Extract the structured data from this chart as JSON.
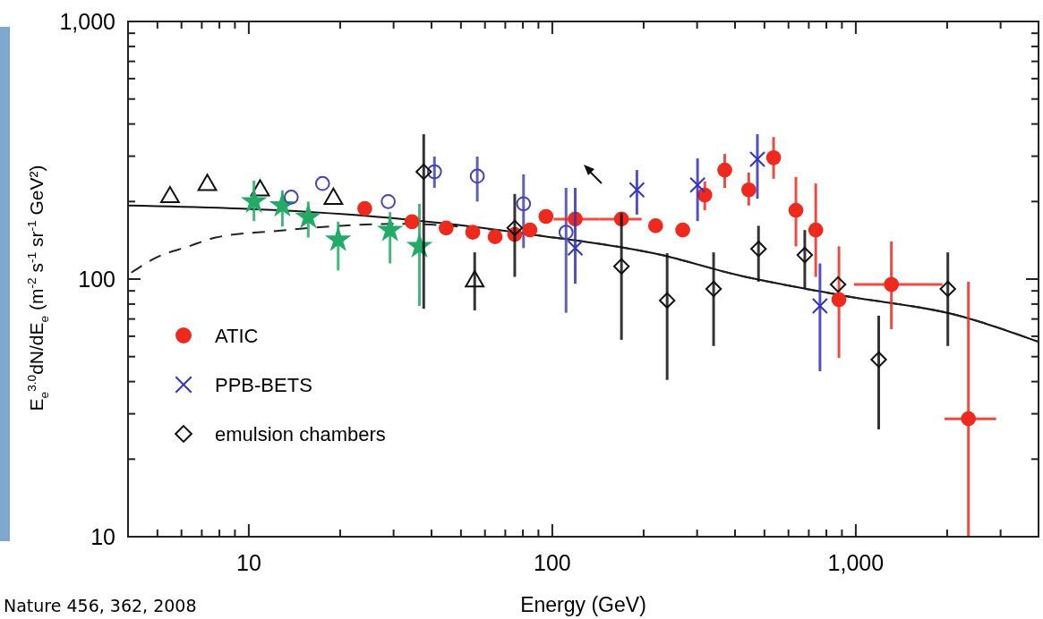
{
  "chart_data": {
    "type": "scatter",
    "xlabel": "Energy (GeV)",
    "ylabel": "E$_{e}$$^{3.0}$dN/dE$_{e}$ (m$^{-2}$ s$^{-1}$ sr$^{-1}$ GeV²)",
    "log": "xy",
    "xlim": [
      4,
      4000
    ],
    "ylim": [
      10,
      1000
    ],
    "xticks": [
      {
        "value": 5,
        "label": null
      },
      {
        "value": 6,
        "label": null
      },
      {
        "value": 7,
        "label": null
      },
      {
        "value": 8,
        "label": null
      },
      {
        "value": 9,
        "label": null
      },
      10,
      {
        "value": 20,
        "label": null
      },
      {
        "value": 30,
        "label": null
      },
      {
        "value": 40,
        "label": null
      },
      {
        "value": 50,
        "label": null
      },
      {
        "value": 60,
        "label": null
      },
      {
        "value": 70,
        "label": null
      },
      {
        "value": 80,
        "label": null
      },
      {
        "value": 90,
        "label": null
      },
      100,
      {
        "value": 200,
        "label": null
      },
      {
        "value": 300,
        "label": null
      },
      {
        "value": 400,
        "label": null
      },
      {
        "value": 500,
        "label": null
      },
      {
        "value": 600,
        "label": null
      },
      {
        "value": 700,
        "label": null
      },
      {
        "value": 800,
        "label": null
      },
      {
        "value": 900,
        "label": null
      },
      {
        "value": 1000,
        "label": "1,000"
      },
      {
        "value": 2000,
        "label": null
      },
      {
        "value": 3000,
        "label": null
      }
    ],
    "yticks": [
      10,
      {
        "value": 20,
        "label": null
      },
      {
        "value": 30,
        "label": null
      },
      {
        "value": 40,
        "label": null
      },
      {
        "value": 50,
        "label": null
      },
      {
        "value": 60,
        "label": null
      },
      {
        "value": 70,
        "label": null
      },
      {
        "value": 80,
        "label": null
      },
      {
        "value": 90,
        "label": null
      },
      100,
      {
        "value": 200,
        "label": null
      },
      {
        "value": 300,
        "label": null
      },
      {
        "value": 400,
        "label": null
      },
      {
        "value": 500,
        "label": null
      },
      {
        "value": 600,
        "label": null
      },
      {
        "value": 700,
        "label": null
      },
      {
        "value": 800,
        "label": null
      },
      {
        "value": 900,
        "label": null
      },
      {
        "value": 1000,
        "label": "1,000"
      }
    ],
    "legend": "left",
    "annotations": [
      "Nature 456, 362, 2008"
    ],
    "series": [
      {
        "type": "line",
        "color": "#111111",
        "line_style": "solid",
        "marker": "none",
        "x": [
          4,
          12.5,
          32.2,
          89,
          229,
          403,
          890,
          2190,
          4000
        ],
        "values": [
          193,
          185,
          171,
          148,
          124,
          104,
          86.6,
          72.1,
          57.1
        ]
      },
      {
        "type": "line",
        "color": "#222222",
        "line_style": "dashed",
        "marker": "none",
        "x": [
          4.1,
          4.94,
          6.35,
          7.78,
          12.5,
          20.1,
          32.2,
          55.5,
          89,
          229,
          403,
          890,
          2190,
          4000
        ],
        "values": [
          106,
          121,
          134,
          145,
          154,
          161,
          164,
          158,
          148,
          124,
          104,
          86.6,
          72.1,
          57.1
        ]
      },
      {
        "color": "#111111",
        "marker": "triangle",
        "x": [
          5.5,
          7.3,
          10.9,
          19,
          55.5
        ],
        "values": [
          208,
          232,
          221,
          205,
          98
        ],
        "errors": [
          null,
          null,
          null,
          null,
          [
            75.6,
            127
          ]
        ]
      },
      {
        "color": "#22aa66",
        "marker": "star",
        "x": [
          10.4,
          12.9,
          15.7,
          19.7,
          29.2,
          36.5
        ],
        "values": [
          200,
          193,
          174,
          142,
          155,
          134
        ],
        "errors": [
          [
            168,
            241
          ],
          [
            160,
            221
          ],
          [
            145,
            200
          ],
          [
            108,
            167
          ],
          [
            115,
            182
          ],
          [
            78.7,
            196
          ]
        ]
      },
      {
        "color": "#4444aa",
        "marker": "circle",
        "x": [
          13.8,
          17.5,
          28.8,
          40.9,
          56.6,
          80.4,
          111
        ],
        "values": [
          208,
          235,
          200,
          261,
          251,
          196,
          152
        ],
        "errors": [
          null,
          null,
          null,
          [
            226,
            299
          ],
          [
            200,
            299
          ],
          [
            132,
            255
          ],
          [
            74,
            226
          ]
        ]
      },
      {
        "name": "ATIC",
        "color": "#ee2a1e",
        "marker": "circle",
        "x": [
          24.1,
          34.5,
          44.7,
          54.7,
          64.8,
          75.2,
          84.4,
          95.3,
          119,
          169,
          219,
          269,
          318,
          370,
          444,
          536,
          635,
          738,
          880,
          1310,
          2350
        ],
        "values": [
          188,
          167,
          158,
          152,
          146,
          149,
          155,
          175,
          171,
          171,
          161,
          155,
          212,
          265,
          222,
          296,
          185,
          155,
          83.2,
          95.3,
          28.7
        ],
        "errors": [
          null,
          null,
          null,
          null,
          null,
          null,
          null,
          null,
          null,
          null,
          null,
          null,
          [
            185,
            239
          ],
          [
            226,
            306
          ],
          [
            193,
            259
          ],
          [
            245,
            356
          ],
          [
            134,
            249
          ],
          [
            102,
            235
          ],
          [
            49.4,
            134
          ],
          [
            63.9,
            140
          ],
          [
            10,
            97.7
          ]
        ],
        "xerrors": [
          null,
          null,
          null,
          null,
          null,
          null,
          null,
          null,
          [
            101,
            143
          ],
          [
            143,
            197
          ],
          null,
          null,
          null,
          null,
          null,
          null,
          null,
          null,
          null,
          [
            986,
            1930
          ],
          [
            1960,
            2900
          ]
        ]
      },
      {
        "name": "PPB-BETS",
        "color": "#3333bb",
        "marker": "cross",
        "x": [
          119,
          190,
          301,
          474,
          762
        ],
        "values": [
          132,
          222,
          232,
          292,
          78.7
        ],
        "errors": [
          [
            96,
            226
          ],
          [
            178,
            265
          ],
          [
            168,
            294
          ],
          [
            205,
            365
          ],
          [
            43.9,
            115
          ]
        ]
      },
      {
        "name": "emulsion chambers",
        "color": "#111111",
        "marker": "diamond",
        "x": [
          37.7,
          75.2,
          169,
          239,
          340,
          478,
          679,
          874,
          1190,
          2010
        ],
        "values": [
          261,
          158,
          112,
          82.6,
          91.6,
          131,
          124,
          95.3,
          48.7,
          91.6
        ],
        "errors": [
          [
            76.7,
            365
          ],
          [
            102,
            214
          ],
          [
            58.1,
            181
          ],
          [
            40.6,
            126
          ],
          [
            55,
            127
          ],
          [
            97.7,
            161
          ],
          [
            92.3,
            155
          ],
          null,
          [
            26.1,
            72.1
          ],
          [
            55,
            127
          ]
        ]
      }
    ]
  }
}
